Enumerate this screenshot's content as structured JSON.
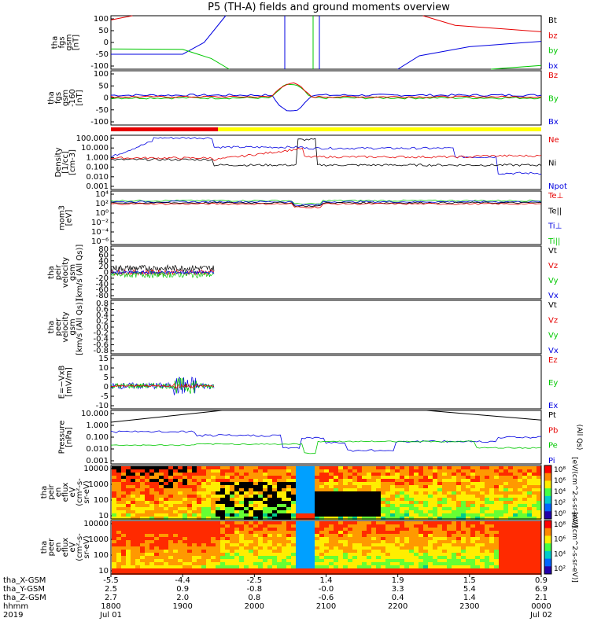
{
  "title": "P5 (TH-A) fields and ground moments overview",
  "colors": {
    "black": "#000000",
    "red": "#e60000",
    "green": "#00c800",
    "blue": "#0000e0",
    "yellow": "#ffff00",
    "cyan": "#00c8c8"
  },
  "chart_data": [
    {
      "type": "line",
      "id": "p1",
      "ylabel_lines": [
        "tha",
        "fgs",
        "gsm",
        "[nT]"
      ],
      "yticks": [
        "100",
        "50",
        "0",
        "-50",
        "-100"
      ],
      "ylim": [
        -100,
        100
      ],
      "series": [
        {
          "name": "Bt",
          "color": "black"
        },
        {
          "name": "bz",
          "color": "red"
        },
        {
          "name": "by",
          "color": "green"
        },
        {
          "name": "bx",
          "color": "blue"
        }
      ]
    },
    {
      "type": "line",
      "id": "p2",
      "ylabel_lines": [
        "tha",
        "fgs",
        "gsm",
        "-160",
        "[nT]"
      ],
      "yticks": [
        "100",
        "50",
        "0",
        "-50",
        "-100"
      ],
      "ylim": [
        -125,
        125
      ],
      "series": [
        {
          "name": "Bz",
          "color": "red"
        },
        {
          "name": "By",
          "color": "green"
        },
        {
          "name": "Bx",
          "color": "blue"
        }
      ]
    },
    {
      "type": "line",
      "id": "p3",
      "ylabel_lines": [
        "Density",
        "[1/cc]",
        "[cm-3]"
      ],
      "yticks": [
        "100.000",
        "10.000",
        "1.000",
        "0.100",
        "0.010",
        "0.001"
      ],
      "ylog": true,
      "series": [
        {
          "name": "Ne",
          "color": "red"
        },
        {
          "name": "Ni",
          "color": "black"
        },
        {
          "name": "Npot",
          "color": "blue"
        }
      ]
    },
    {
      "type": "line",
      "id": "p4",
      "ylabel_lines": [
        "mom3",
        "[eV]"
      ],
      "yticks": [
        "10⁴",
        "10²",
        "10⁰",
        "10⁻²",
        "10⁻⁴",
        "10⁻⁶"
      ],
      "ylog": true,
      "series": [
        {
          "name": "Te⊥",
          "color": "red"
        },
        {
          "name": "Te||",
          "color": "black"
        },
        {
          "name": "Ti⊥",
          "color": "blue"
        },
        {
          "name": "Ti||",
          "color": "green"
        }
      ]
    },
    {
      "type": "line",
      "id": "p5",
      "ylabel_lines": [
        "tha",
        "peir",
        "velocity",
        "gsm",
        "[km/s (All Qs)]"
      ],
      "yticks": [
        "80",
        "60",
        "40",
        "20",
        "0",
        "-20",
        "-40",
        "-60",
        "-80"
      ],
      "ylim": [
        -80,
        80
      ],
      "series": [
        {
          "name": "Vt",
          "color": "black"
        },
        {
          "name": "Vz",
          "color": "red"
        },
        {
          "name": "Vy",
          "color": "green"
        },
        {
          "name": "Vx",
          "color": "blue"
        }
      ]
    },
    {
      "type": "line",
      "id": "p6",
      "ylabel_lines": [
        "tha",
        "peer",
        "velocity",
        "gsm",
        "[km/s (All Qs)]"
      ],
      "yticks": [
        "0.8",
        "0.6",
        "0.4",
        "0.2",
        "0.0",
        "-0.2",
        "-0.4",
        "-0.6",
        "-0.8"
      ],
      "ylim": [
        -0.8,
        0.8
      ],
      "series": [
        {
          "name": "Vt",
          "color": "black"
        },
        {
          "name": "Vz",
          "color": "red"
        },
        {
          "name": "Vy",
          "color": "green"
        },
        {
          "name": "Vx",
          "color": "blue"
        }
      ]
    },
    {
      "type": "line",
      "id": "p7",
      "ylabel_lines": [
        "E=−VxB",
        "[mV/m]"
      ],
      "yticks": [
        "15",
        "10",
        "5",
        "0",
        "-5",
        "-10"
      ],
      "ylim": [
        -12,
        16
      ],
      "series": [
        {
          "name": "Ez",
          "color": "red"
        },
        {
          "name": "Ey",
          "color": "green"
        },
        {
          "name": "Ex",
          "color": "blue"
        }
      ]
    },
    {
      "type": "line",
      "id": "p8",
      "ylabel_lines": [
        "Pressure",
        "[nPa]"
      ],
      "yticks": [
        "10.000",
        "1.000",
        "0.100",
        "0.010",
        "0.001"
      ],
      "ylog": true,
      "series": [
        {
          "name": "Pt",
          "color": "black"
        },
        {
          "name": "Pb",
          "color": "red"
        },
        {
          "name": "Pe",
          "color": "green"
        },
        {
          "name": "Pi",
          "color": "blue"
        }
      ],
      "series_note": "(All Qs)"
    },
    {
      "type": "heatmap",
      "id": "p9",
      "ylabel_lines": [
        "tha",
        "peir",
        "en",
        "eflux",
        "eV",
        "(cm²-s-",
        "sr-eV)"
      ],
      "yticks": [
        "10000",
        "1000",
        "100",
        "10"
      ],
      "colorbar_ticks": [
        "10⁸",
        "10⁶",
        "10⁴",
        "10²",
        "10⁰"
      ],
      "colorbar_label": "[eV/(cm^2-s-sr-eV)]"
    },
    {
      "type": "heatmap",
      "id": "p10",
      "ylabel_lines": [
        "tha",
        "peer",
        "en",
        "eflux",
        "eV",
        "(cm²-s-",
        "sr-eV)"
      ],
      "yticks": [
        "10000",
        "1000",
        "100",
        "10"
      ],
      "colorbar_ticks": [
        "10⁸",
        "10⁶",
        "10⁴",
        "10²"
      ],
      "colorbar_label": "[eV/(cm^2-s-sr-eV)]"
    }
  ],
  "xaxis": {
    "row_labels": [
      "tha_X-GSM",
      "tha_Y-GSM",
      "tha_Z-GSM",
      "hhmm",
      "2019"
    ],
    "columns": [
      {
        "x": "-5.5",
        "y": "2.5",
        "z": "2.7",
        "hhmm": "1800",
        "date": "Jul 01"
      },
      {
        "x": "-4.4",
        "y": "0.9",
        "z": "2.0",
        "hhmm": "1900",
        "date": ""
      },
      {
        "x": "-2.5",
        "y": "-0.8",
        "z": "0.8",
        "hhmm": "2000",
        "date": ""
      },
      {
        "x": "1.4",
        "y": "-0.0",
        "z": "-0.6",
        "hhmm": "2100",
        "date": ""
      },
      {
        "x": "1.9",
        "y": "3.3",
        "z": "0.4",
        "hhmm": "2200",
        "date": ""
      },
      {
        "x": "1.5",
        "y": "5.4",
        "z": "1.4",
        "hhmm": "2300",
        "date": ""
      },
      {
        "x": "0.9",
        "y": "6.9",
        "z": "2.1",
        "hhmm": "0000",
        "date": "Jul 02"
      }
    ]
  }
}
